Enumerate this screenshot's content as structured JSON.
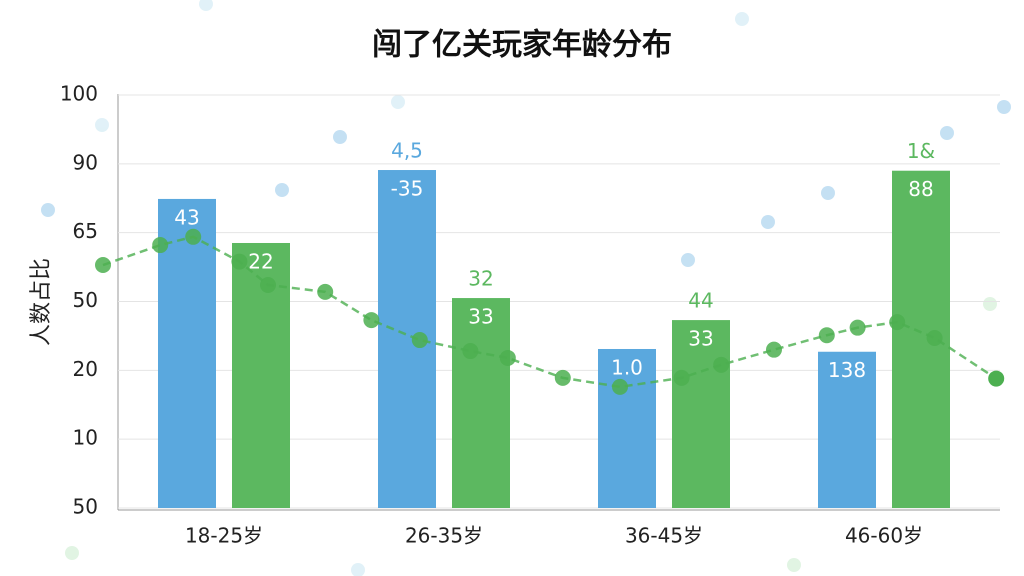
{
  "chart_data": {
    "type": "bar",
    "title": "闯了亿关玩家年龄分布",
    "y_label": "人数占比",
    "categories": [
      "18-25岁",
      "26-35岁",
      "36-45岁",
      "46-60岁"
    ],
    "ylim": [
      0,
      6
    ],
    "yticks": [
      0,
      1,
      2,
      3,
      4,
      5,
      6
    ],
    "ytick_labels": [
      "50",
      "10",
      "20",
      "50",
      "65",
      "90",
      "100"
    ],
    "grid": true,
    "series": [
      {
        "color": "#5aa8de",
        "values": [
          4.49,
          4.91,
          2.31,
          2.27
        ],
        "inner_labels": [
          "43",
          "-35",
          "1.0",
          "138"
        ],
        "top_labels": [
          null,
          "4,5",
          null,
          null
        ]
      },
      {
        "color": "#5cb860",
        "values": [
          3.85,
          3.05,
          2.73,
          4.9
        ],
        "inner_labels": [
          "22",
          "33",
          "33",
          "88"
        ],
        "top_labels": [
          null,
          "32",
          "44",
          "1&"
        ]
      }
    ],
    "line": {
      "color": "#4caf50",
      "x": [
        -0.55,
        -0.29,
        -0.14,
        0.07,
        0.2,
        0.46,
        0.67,
        0.89,
        1.12,
        1.29,
        1.54,
        1.8,
        2.08,
        2.26,
        2.5,
        2.74,
        2.88,
        3.06,
        3.23,
        3.51
      ],
      "values": [
        3.53,
        3.82,
        3.94,
        3.58,
        3.24,
        3.14,
        2.73,
        2.44,
        2.28,
        2.18,
        1.89,
        1.76,
        1.89,
        2.08,
        2.3,
        2.51,
        2.62,
        2.7,
        2.47,
        1.88
      ]
    }
  }
}
